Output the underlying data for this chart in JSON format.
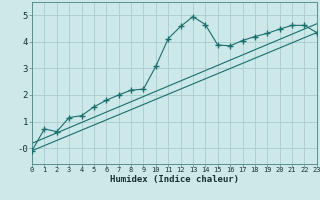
{
  "xlabel": "Humidex (Indice chaleur)",
  "bg_color": "#cce8e8",
  "grid_color": "#aacccc",
  "line_color": "#1a6e6e",
  "xlim": [
    0,
    23
  ],
  "ylim": [
    -0.6,
    5.5
  ],
  "xticks": [
    0,
    1,
    2,
    3,
    4,
    5,
    6,
    7,
    8,
    9,
    10,
    11,
    12,
    13,
    14,
    15,
    16,
    17,
    18,
    19,
    20,
    21,
    22,
    23
  ],
  "yticks": [
    0,
    1,
    2,
    3,
    4,
    5
  ],
  "ytick_labels": [
    "-0",
    "1",
    "2",
    "3",
    "4",
    "5"
  ],
  "curve_x": [
    0,
    1,
    2,
    3,
    4,
    5,
    6,
    7,
    8,
    9,
    10,
    11,
    12,
    13,
    14,
    15,
    16,
    17,
    18,
    19,
    20,
    21,
    22,
    23
  ],
  "curve_y": [
    -0.1,
    0.72,
    0.62,
    1.15,
    1.22,
    1.55,
    1.8,
    2.0,
    2.18,
    2.22,
    3.08,
    4.12,
    4.58,
    4.95,
    4.65,
    3.88,
    3.85,
    4.05,
    4.2,
    4.32,
    4.48,
    4.62,
    4.62,
    4.35
  ],
  "line1_x": [
    0,
    23
  ],
  "line1_y": [
    -0.1,
    4.35
  ],
  "line2_x": [
    0,
    23
  ],
  "line2_y": [
    0.18,
    4.68
  ]
}
